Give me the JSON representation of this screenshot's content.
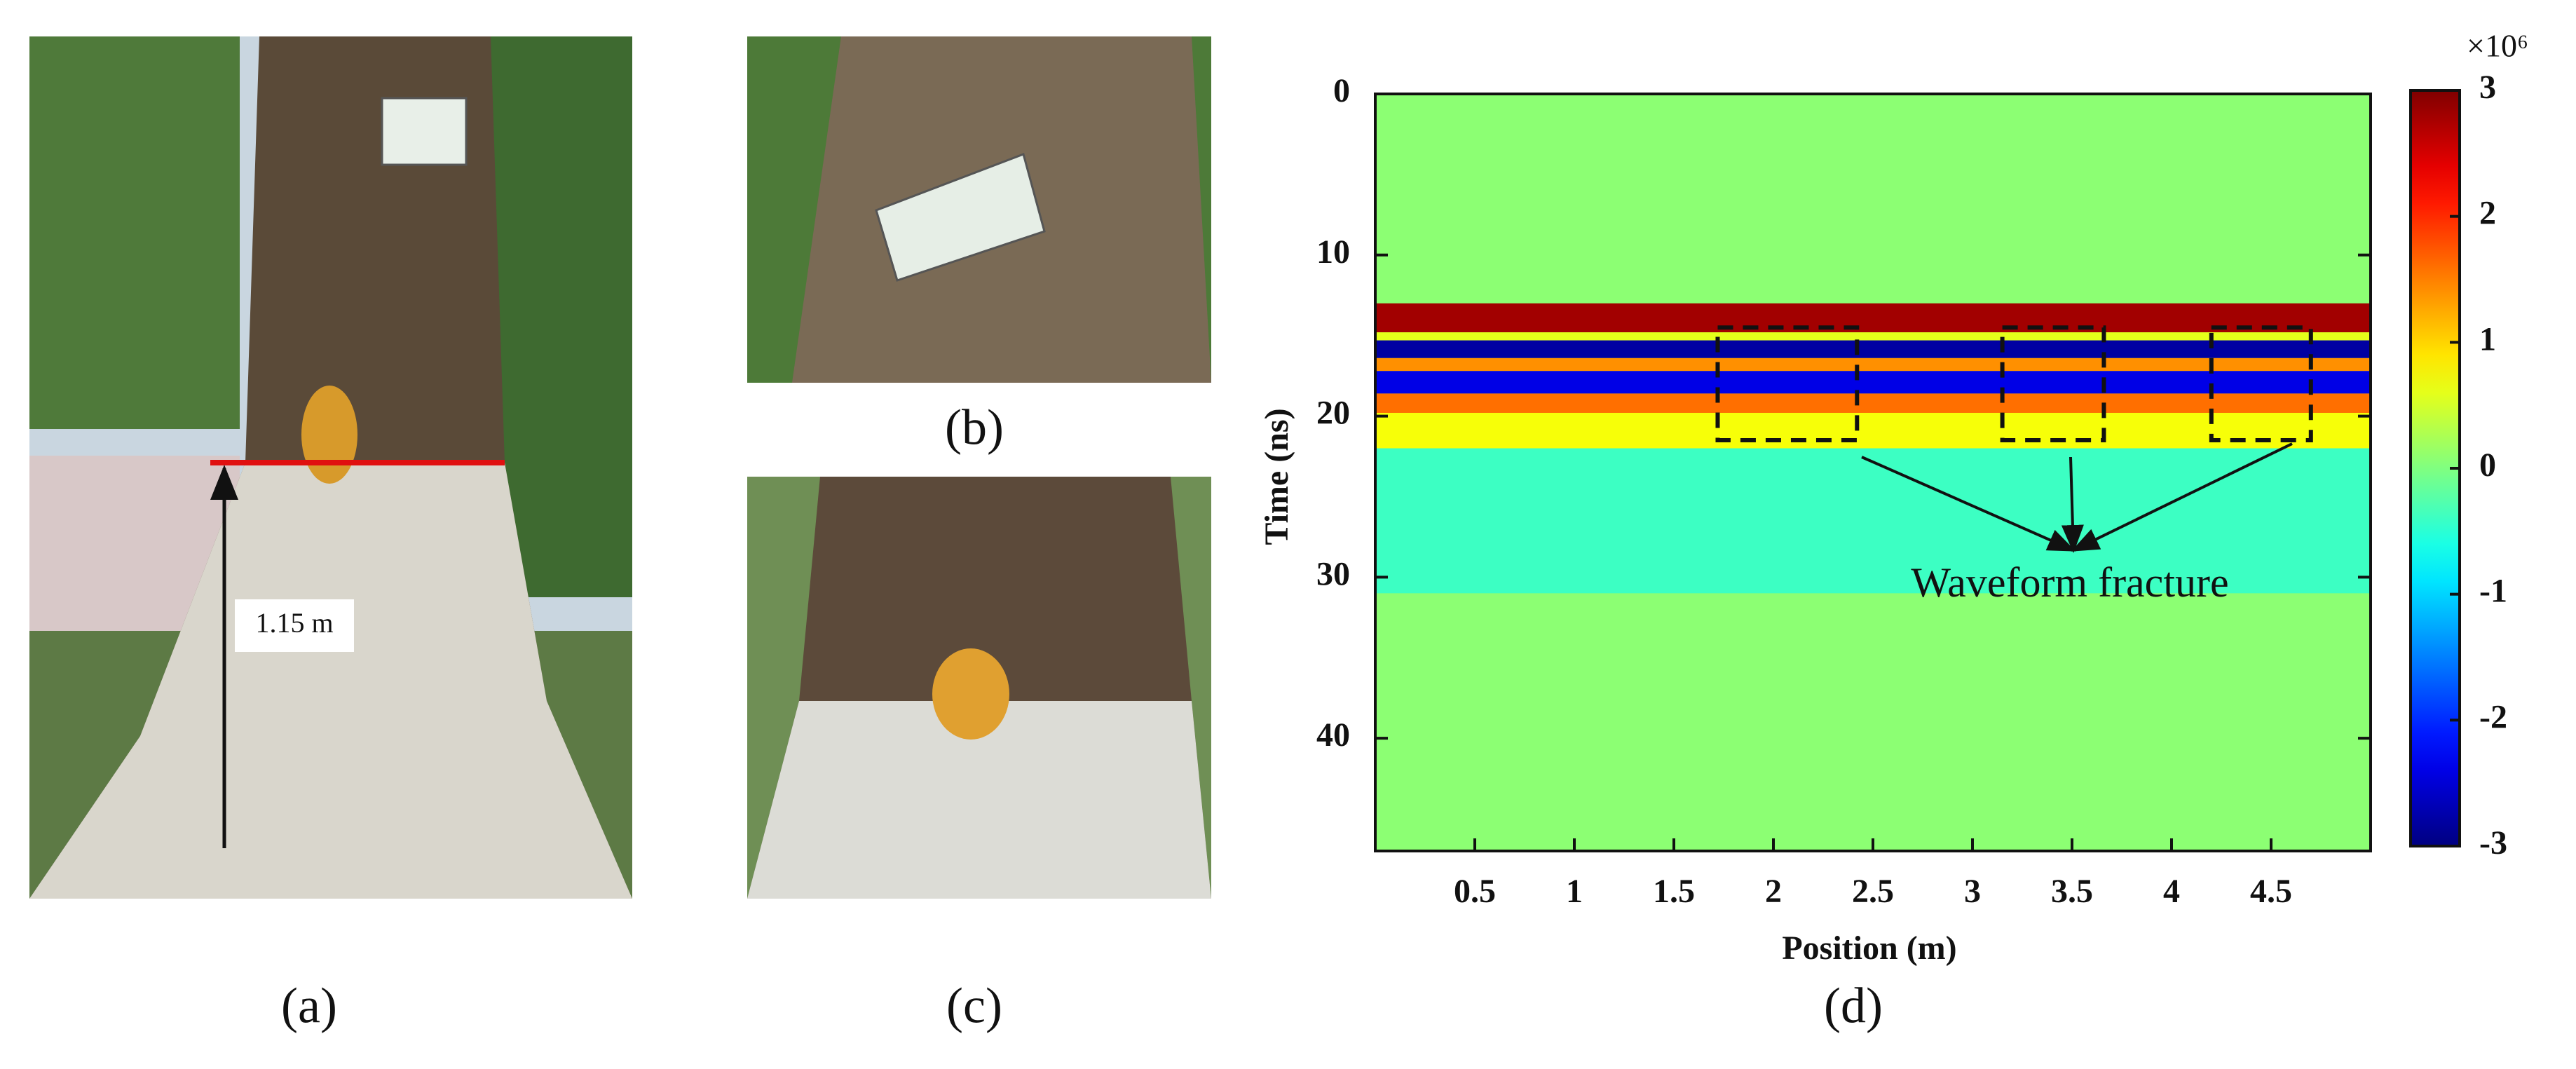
{
  "panels": [
    {
      "label": "(a)",
      "annotation": "1.15 m"
    },
    {
      "label": "(b)"
    },
    {
      "label": "(c)"
    }
  ],
  "chart_data": {
    "type": "radargram",
    "panel_label": "(d)",
    "x_label": "Position (m)",
    "y_label": "Time (ns)",
    "xlim": [
      0,
      5
    ],
    "xticks": [
      0.5,
      1,
      1.5,
      2,
      2.5,
      3,
      3.5,
      4,
      4.5
    ],
    "ylim": [
      0,
      47
    ],
    "yticks": [
      0,
      10,
      20,
      30,
      40
    ],
    "colorbar": {
      "lim": [
        -3,
        3
      ],
      "ticks": [
        -3,
        -2,
        -1,
        0,
        1,
        2,
        3
      ],
      "scale_label": "×10⁶"
    },
    "layers": [
      {
        "start": 13,
        "end": 14.8,
        "value": 2.8
      },
      {
        "start": 14.8,
        "end": 15.3,
        "value": 0.6
      },
      {
        "start": 15.3,
        "end": 16.4,
        "value": -2.8
      },
      {
        "start": 16.4,
        "end": 17.2,
        "value": 1.4
      },
      {
        "start": 17.2,
        "end": 18.6,
        "value": -2.4
      },
      {
        "start": 18.6,
        "end": 19.8,
        "value": 1.6
      },
      {
        "start": 19.8,
        "end": 22,
        "value": 0.7
      },
      {
        "start": 22,
        "end": 31,
        "value": -0.4
      }
    ],
    "fracture_regions": [
      {
        "x": [
          1.72,
          2.42
        ],
        "t": [
          14.5,
          21.5
        ]
      },
      {
        "x": [
          3.15,
          3.66
        ],
        "t": [
          14.5,
          21.5
        ]
      },
      {
        "x": [
          4.2,
          4.7
        ],
        "t": [
          14.5,
          21.5
        ]
      }
    ],
    "annotation": "Waveform fracture"
  }
}
